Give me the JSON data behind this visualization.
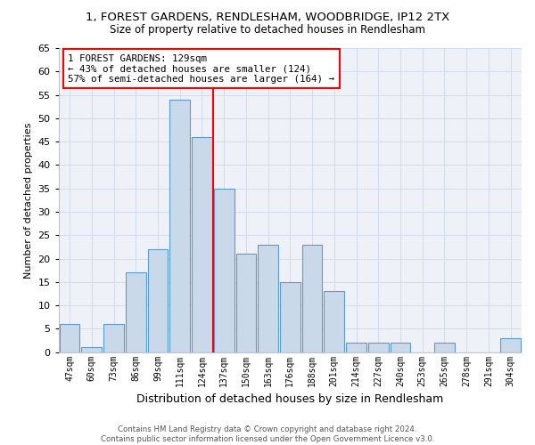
{
  "title1": "1, FOREST GARDENS, RENDLESHAM, WOODBRIDGE, IP12 2TX",
  "title2": "Size of property relative to detached houses in Rendlesham",
  "xlabel": "Distribution of detached houses by size in Rendlesham",
  "ylabel": "Number of detached properties",
  "categories": [
    "47sqm",
    "60sqm",
    "73sqm",
    "86sqm",
    "99sqm",
    "111sqm",
    "124sqm",
    "137sqm",
    "150sqm",
    "163sqm",
    "176sqm",
    "188sqm",
    "201sqm",
    "214sqm",
    "227sqm",
    "240sqm",
    "253sqm",
    "265sqm",
    "278sqm",
    "291sqm",
    "304sqm"
  ],
  "values": [
    6,
    1,
    6,
    17,
    22,
    54,
    46,
    35,
    21,
    23,
    15,
    23,
    13,
    2,
    2,
    2,
    0,
    2,
    0,
    0,
    3
  ],
  "bar_color": "#c9d9ea",
  "bar_edge_color": "#5b9bd5",
  "vline_color": "red",
  "annotation_text": "1 FOREST GARDENS: 129sqm\n← 43% of detached houses are smaller (124)\n57% of semi-detached houses are larger (164) →",
  "annotation_box_color": "white",
  "annotation_box_edge": "red",
  "ylim": [
    0,
    65
  ],
  "yticks": [
    0,
    5,
    10,
    15,
    20,
    25,
    30,
    35,
    40,
    45,
    50,
    55,
    60,
    65
  ],
  "footnote": "Contains HM Land Registry data © Crown copyright and database right 2024.\nContains public sector information licensed under the Open Government Licence v3.0.",
  "grid_color": "#d0d8e8",
  "bg_color": "#eef2f8"
}
